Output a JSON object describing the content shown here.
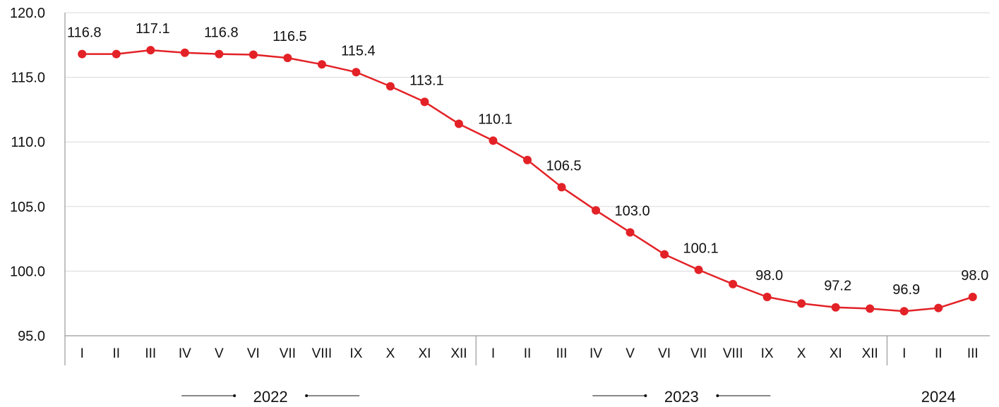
{
  "chart_data": {
    "type": "line",
    "title": "",
    "xlabel": "",
    "ylabel": "",
    "ylim": [
      95.0,
      120.0
    ],
    "yticks": [
      "95.0",
      "100.0",
      "105.0",
      "110.0",
      "115.0",
      "120.0"
    ],
    "grid": true,
    "legend": "none",
    "line_color": "#e32227",
    "categories": [
      "I",
      "II",
      "III",
      "IV",
      "V",
      "VI",
      "VII",
      "VIII",
      "IX",
      "X",
      "XI",
      "XII",
      "I",
      "II",
      "III",
      "IV",
      "V",
      "VI",
      "VII",
      "VIII",
      "IX",
      "X",
      "XI",
      "XII",
      "I",
      "II",
      "III"
    ],
    "year_groups": [
      {
        "label": "2022",
        "count": 12
      },
      {
        "label": "2023",
        "count": 12
      },
      {
        "label": "2024",
        "count": 3
      }
    ],
    "series": [
      {
        "values": [
          116.8,
          116.8,
          117.1,
          116.9,
          116.8,
          116.75,
          116.5,
          116.0,
          115.4,
          114.3,
          113.1,
          111.4,
          110.1,
          108.6,
          106.5,
          104.7,
          103.0,
          101.3,
          100.1,
          99.0,
          98.0,
          97.5,
          97.2,
          97.1,
          96.9,
          97.15,
          98.0
        ]
      }
    ],
    "data_labels": [
      {
        "index": 0,
        "text": "116.8"
      },
      {
        "index": 2,
        "text": "117.1"
      },
      {
        "index": 4,
        "text": "116.8"
      },
      {
        "index": 6,
        "text": "116.5"
      },
      {
        "index": 8,
        "text": "115.4"
      },
      {
        "index": 10,
        "text": "113.1"
      },
      {
        "index": 12,
        "text": "110.1"
      },
      {
        "index": 14,
        "text": "106.5"
      },
      {
        "index": 16,
        "text": "103.0"
      },
      {
        "index": 18,
        "text": "100.1"
      },
      {
        "index": 20,
        "text": "98.0"
      },
      {
        "index": 22,
        "text": "97.2"
      },
      {
        "index": 24,
        "text": "96.9"
      },
      {
        "index": 26,
        "text": "98.0"
      }
    ]
  }
}
